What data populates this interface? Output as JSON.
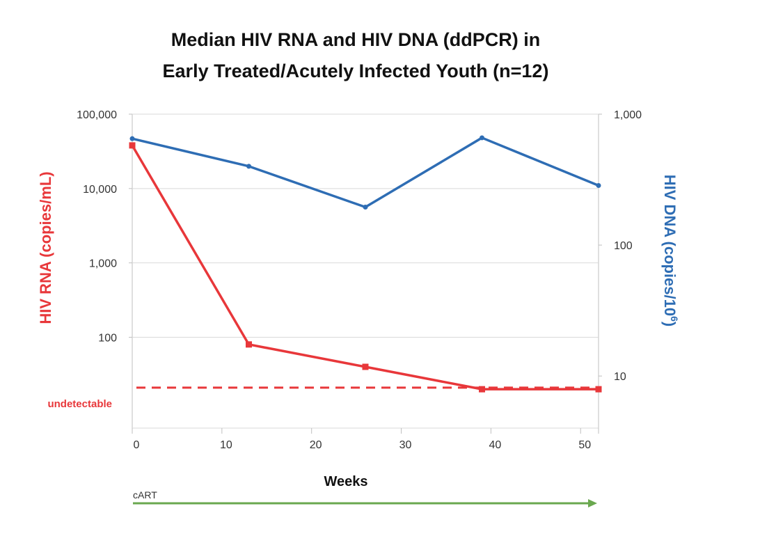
{
  "chart_data": {
    "type": "line",
    "title_lines": [
      "Median HIV RNA and HIV DNA (ddPCR) in",
      "Early Treated/Acutely Infected Youth (n=12)"
    ],
    "xlabel": "Weeks",
    "ylabel_left": "HIV RNA (copies/mL)",
    "ylabel_right_main": "HIV DNA (copies/10",
    "ylabel_right_sup": "6",
    "ylabel_right_end": ")",
    "x_ticks": [
      0,
      10,
      20,
      30,
      40,
      50
    ],
    "x_tick_labels": [
      "0",
      "10",
      "20",
      "30",
      "40",
      "50"
    ],
    "xlim": [
      0,
      52
    ],
    "y_left_scale": "log",
    "y_left_ticks": [
      100,
      1000,
      10000,
      100000
    ],
    "y_left_tick_labels": [
      "100",
      "1,000",
      "10,000",
      "100,000"
    ],
    "ylim_left": [
      6,
      100000
    ],
    "y_right_scale": "log",
    "y_right_ticks": [
      10,
      100,
      1000
    ],
    "y_right_tick_labels": [
      "10",
      "100",
      "1,000"
    ],
    "ylim_right": [
      4,
      1000
    ],
    "grid": true,
    "series": [
      {
        "name": "HIV RNA (copies/mL)",
        "axis": "left",
        "color": "#e8373a",
        "marker": "square",
        "x": [
          0,
          13,
          26,
          39,
          52
        ],
        "y": [
          38000,
          80,
          40,
          20,
          20
        ]
      },
      {
        "name": "HIV DNA (copies/10^6)",
        "axis": "right",
        "color": "#2e6db4",
        "marker": "circle",
        "x": [
          0,
          13,
          26,
          39,
          52
        ],
        "y": [
          650,
          400,
          195,
          660,
          285
        ]
      }
    ],
    "reference_line": {
      "label": "undetectable",
      "axis": "left",
      "y": 21,
      "color": "#e8373a",
      "style": "dashed"
    },
    "annotation": {
      "label": "cART",
      "color": "#6aa84f",
      "x_start": 0,
      "x_end": 52
    }
  }
}
